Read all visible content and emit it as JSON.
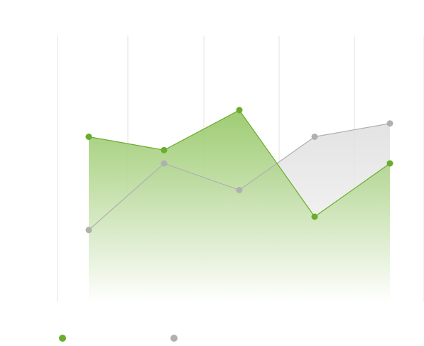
{
  "chart_data": {
    "type": "area",
    "x": [
      1,
      2,
      3,
      4,
      5
    ],
    "ylim": [
      0,
      100
    ],
    "grid": true,
    "legend_placement": "bottom-left",
    "series": [
      {
        "values": [
          62,
          57,
          72,
          32,
          52
        ],
        "color": "#6aac2b",
        "fill_top": "#8dc35a",
        "fill_bottom": "#ffffff"
      },
      {
        "values": [
          27,
          52,
          42,
          62,
          67
        ],
        "color": "#b0b0b0",
        "fill_top": "#dcdcdc",
        "fill_bottom": "#ffffff"
      }
    ]
  }
}
